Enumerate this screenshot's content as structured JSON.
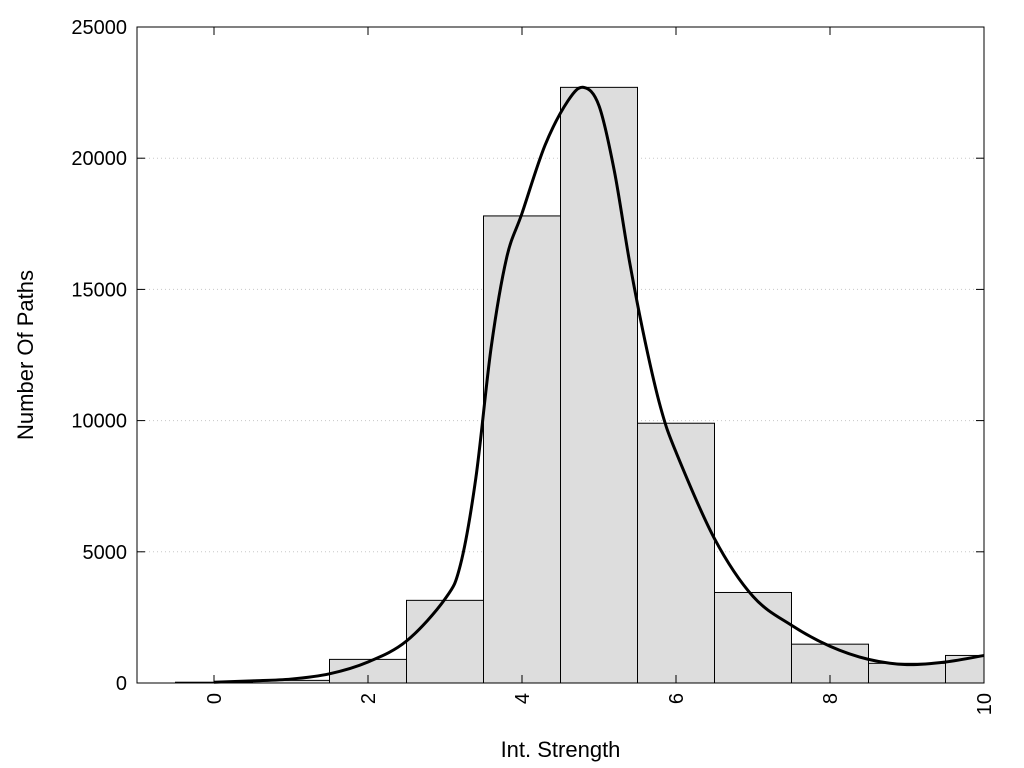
{
  "chart_data": {
    "type": "bar",
    "title": "",
    "xlabel": "Int. Strength",
    "ylabel": "Number Of Paths",
    "xlim": [
      -1,
      10
    ],
    "ylim": [
      0,
      25000
    ],
    "x_ticks": [
      0,
      2,
      4,
      6,
      8,
      10
    ],
    "y_ticks": [
      0,
      5000,
      10000,
      15000,
      20000,
      25000
    ],
    "grid": "horizontal dotted",
    "bar_color": "#dddddd",
    "bar_edge_color": "#000000",
    "line_color": "#000000",
    "bars": {
      "x": [
        0,
        1,
        2,
        3,
        4,
        5,
        6,
        7,
        8,
        9,
        10
      ],
      "values": [
        30,
        100,
        900,
        3150,
        17800,
        22700,
        9900,
        3450,
        1480,
        750,
        1050
      ]
    },
    "curve": {
      "x": [
        0,
        0.5,
        1,
        1.5,
        2,
        2.5,
        3,
        3.2,
        3.4,
        3.6,
        3.8,
        4,
        4.3,
        4.6,
        4.8,
        5,
        5.2,
        5.4,
        5.6,
        5.8,
        6,
        6.5,
        7,
        7.5,
        8,
        8.5,
        9,
        9.5,
        10
      ],
      "y": [
        30,
        80,
        150,
        350,
        800,
        1600,
        3200,
        4500,
        7800,
        12800,
        16200,
        17900,
        20500,
        22200,
        22700,
        22000,
        19500,
        16000,
        13000,
        10500,
        8800,
        5500,
        3300,
        2200,
        1400,
        900,
        700,
        800,
        1050
      ]
    }
  }
}
